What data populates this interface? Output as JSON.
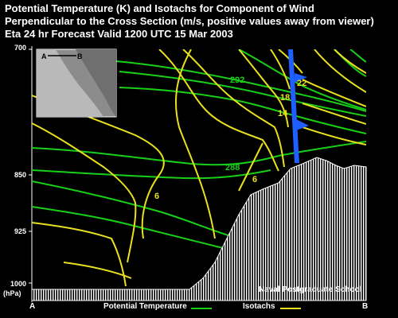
{
  "title_lines": [
    "Potential Temperature (K) and Isotachs for Component of Wind",
    "Perpendicular to the Cross Section (m/s, positive values away from viewer)",
    "Eta 24 hr Forecast Valid 1200 UTC  15 Mar 2003"
  ],
  "pressure_levels": [
    "700",
    "850",
    "925",
    "1000"
  ],
  "pressure_unit": "(hPa)",
  "endpoints": {
    "left": "A",
    "right": "B"
  },
  "inset": {
    "left": "A",
    "right": "B"
  },
  "contour_labels": {
    "theta": [
      "292",
      "288"
    ],
    "isotachs": [
      "22",
      "18",
      "14",
      "6",
      "6"
    ]
  },
  "legend": {
    "theta": "Potential Temperature",
    "isotachs": "Isotachs",
    "theta_color": "#18d018",
    "isotach_color": "#e8e020"
  },
  "credit": "Naval Postgraduate School",
  "colors": {
    "terrain": "#ffffff",
    "wind_barb": "#1f5fff"
  }
}
